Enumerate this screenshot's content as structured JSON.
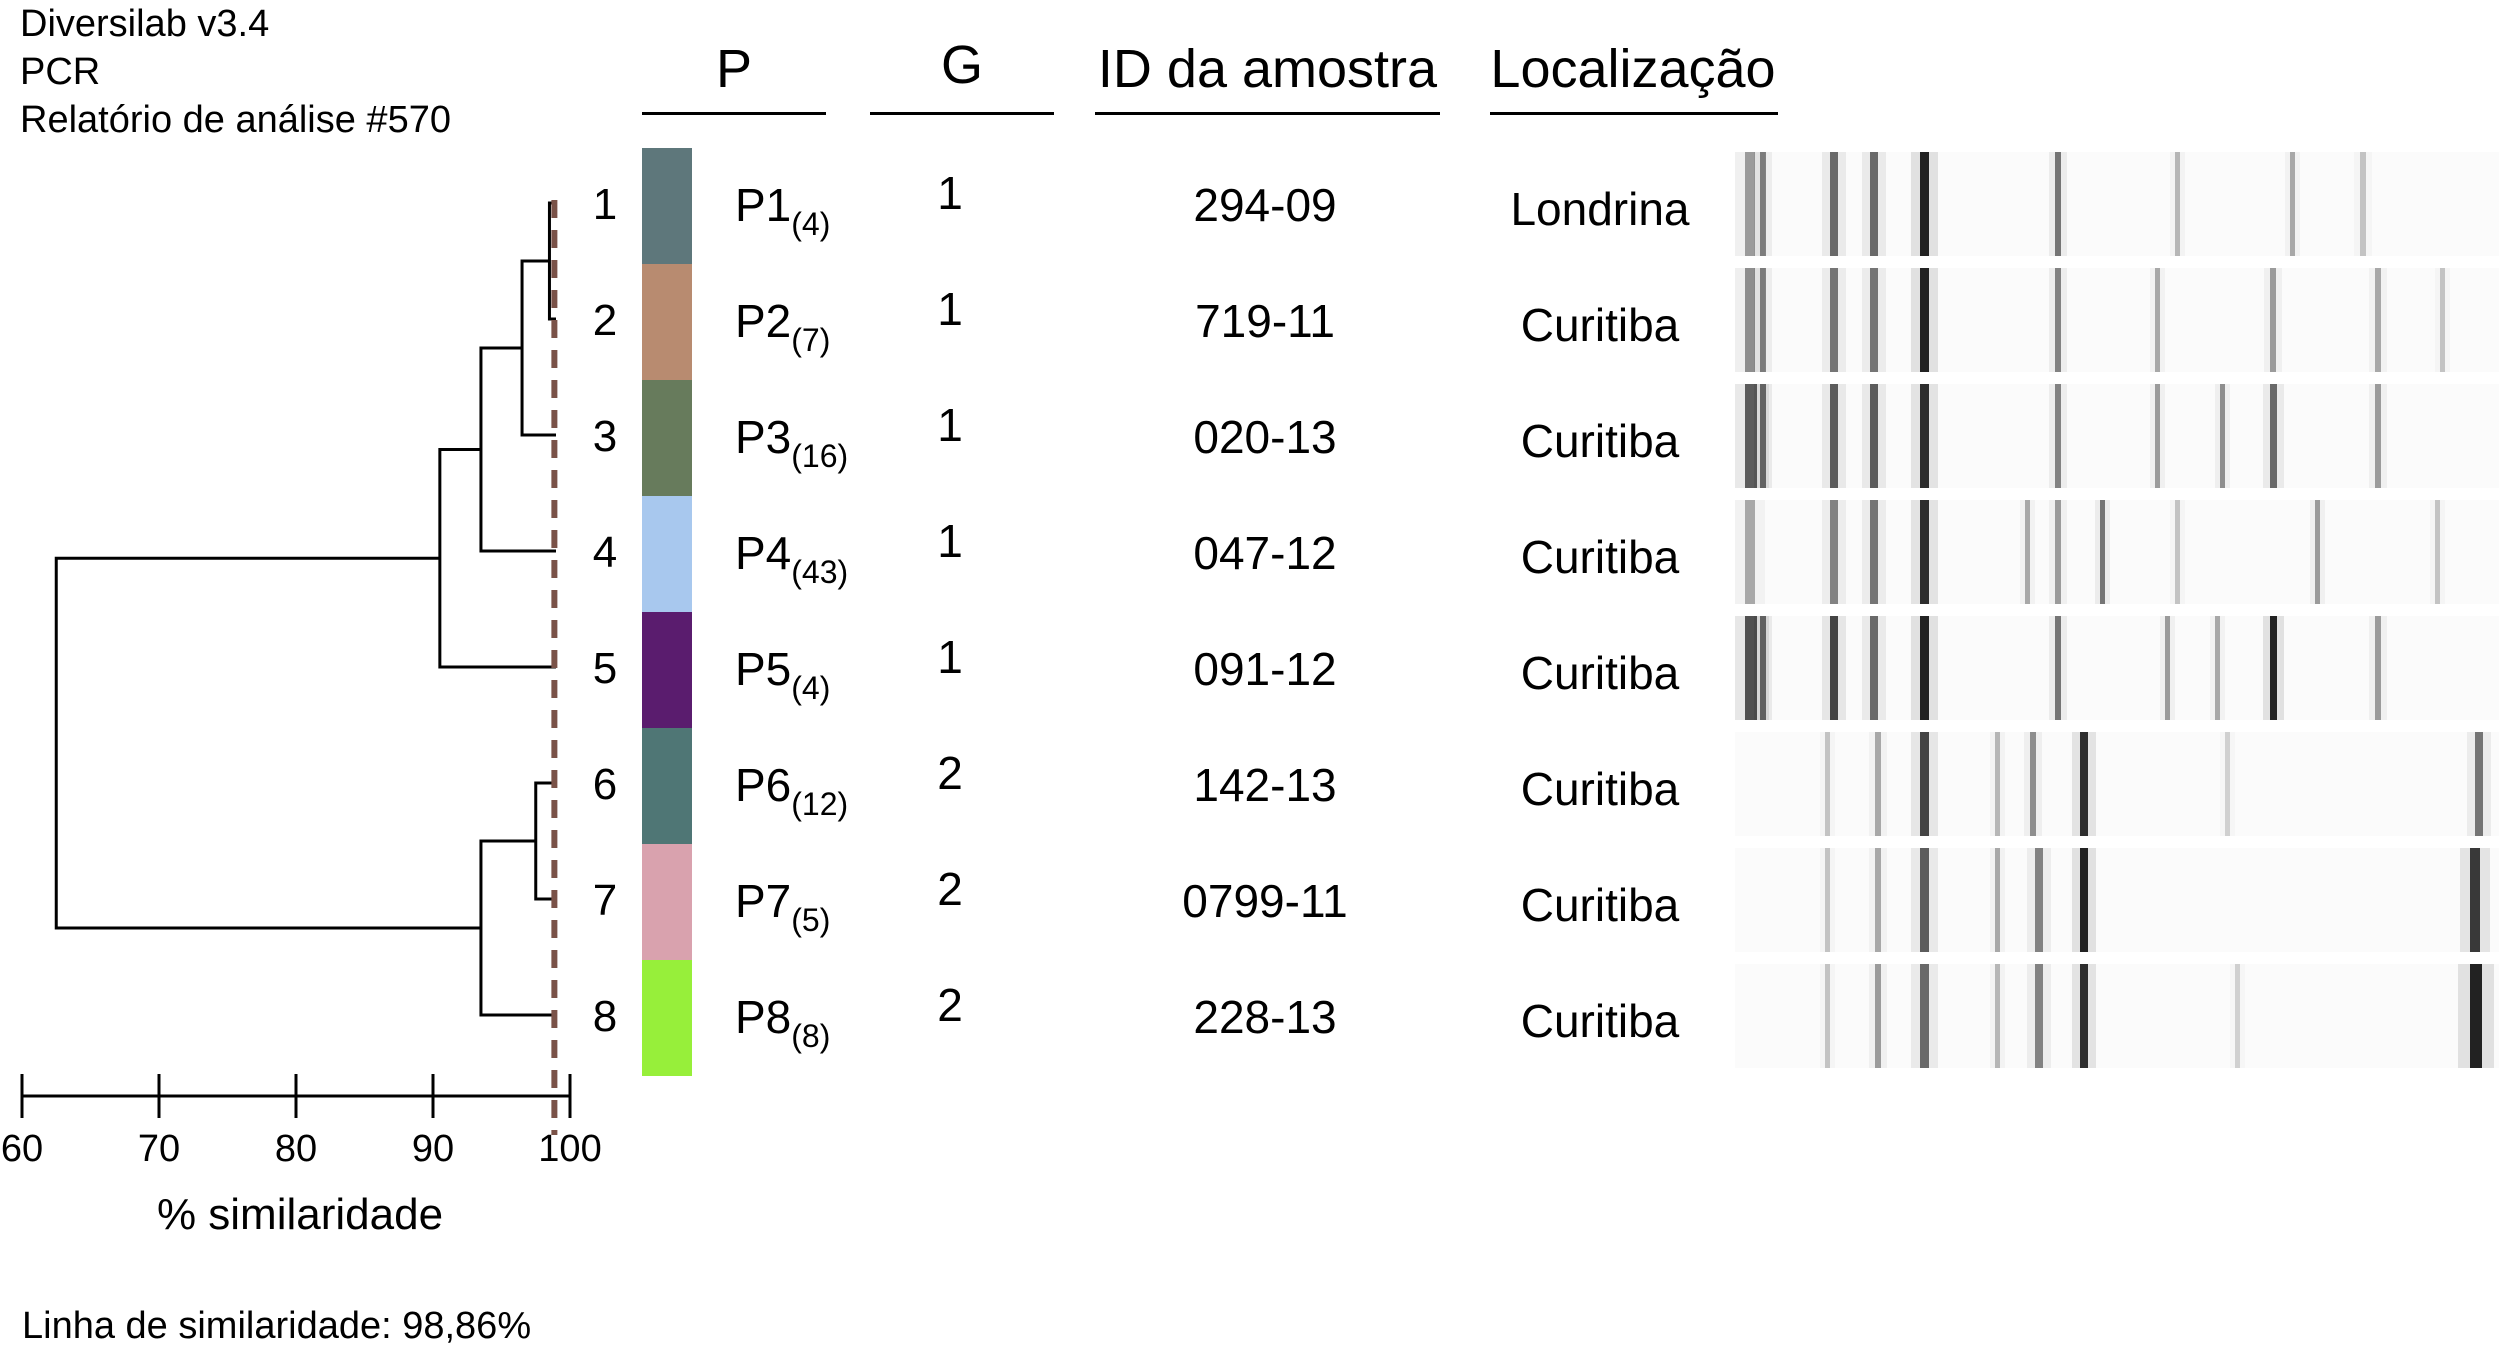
{
  "header": {
    "software": "Diversilab v3.4",
    "method": "PCR",
    "report": "Relatório de análise #570"
  },
  "columns": {
    "p": "P",
    "g": "G",
    "id": "ID da amostra",
    "location": "Localização"
  },
  "rows": [
    {
      "num": "1",
      "p": "P1",
      "p_count": "(4)",
      "g": "1",
      "id": "294-09",
      "location": "Londrina",
      "color": "#5e777b"
    },
    {
      "num": "2",
      "p": "P2",
      "p_count": "(7)",
      "g": "1",
      "id": "719-11",
      "location": "Curitiba",
      "color": "#b88b70"
    },
    {
      "num": "3",
      "p": "P3",
      "p_count": "(16)",
      "g": "1",
      "id": "020-13",
      "location": "Curitiba",
      "color": "#677b5c"
    },
    {
      "num": "4",
      "p": "P4",
      "p_count": "(43)",
      "g": "1",
      "id": "047-12",
      "location": "Curitiba",
      "color": "#a8c8ee"
    },
    {
      "num": "5",
      "p": "P5",
      "p_count": "(4)",
      "g": "1",
      "id": "091-12",
      "location": "Curitiba",
      "color": "#5a1c6e"
    },
    {
      "num": "6",
      "p": "P6",
      "p_count": "(12)",
      "g": "2",
      "id": "142-13",
      "location": "Curitiba",
      "color": "#4f7675"
    },
    {
      "num": "7",
      "p": "P7",
      "p_count": "(5)",
      "g": "2",
      "id": "0799-11",
      "location": "Curitiba",
      "color": "#d9a2ae"
    },
    {
      "num": "8",
      "p": "P8",
      "p_count": "(8)",
      "g": "2",
      "id": "228-13",
      "location": "Curitiba",
      "color": "#97ef3a"
    }
  ],
  "dendrogram": {
    "merges": [
      {
        "a": "leaf1",
        "b": "leaf2",
        "similarity": 98.5
      },
      {
        "a": "m12",
        "b": "leaf3",
        "similarity": 96.5
      },
      {
        "a": "m123",
        "b": "leaf4",
        "similarity": 93.5
      },
      {
        "a": "m1234",
        "b": "leaf5",
        "similarity": 90.5
      },
      {
        "a": "leaf6",
        "b": "leaf7",
        "similarity": 97.5
      },
      {
        "a": "m67",
        "b": "leaf8",
        "similarity": 93.5
      },
      {
        "a": "g1",
        "b": "g2",
        "similarity": 62.5
      }
    ],
    "cutoff": 98.86,
    "cutoff_color": "#7a5248"
  },
  "axis": {
    "ticks": [
      "60",
      "70",
      "80",
      "90",
      "100"
    ],
    "label": "% similaridade",
    "range": [
      60,
      100
    ]
  },
  "footer": {
    "similarity_line": "Linha de similaridade: 98,86%"
  }
}
